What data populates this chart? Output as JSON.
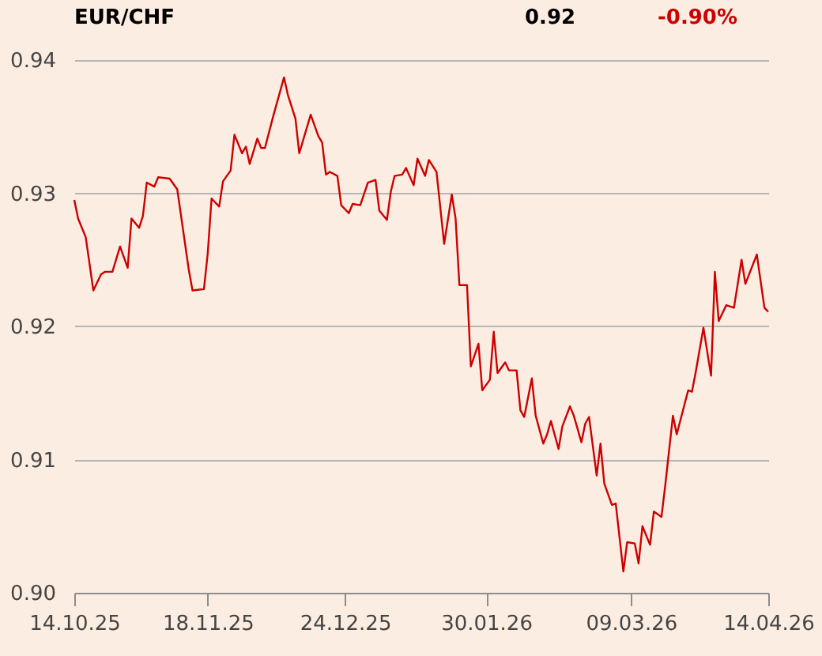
{
  "chart_data": {
    "type": "line",
    "title": "EUR/CHF",
    "annotations": [
      "0.92",
      "-0.90%"
    ],
    "x": [
      "2025-10-14",
      "2025-10-15",
      "2025-10-17",
      "2025-10-19",
      "2025-10-21",
      "2025-10-22",
      "2025-10-24",
      "2025-10-26",
      "2025-10-28",
      "2025-10-29",
      "2025-10-31",
      "2025-11-01",
      "2025-11-02",
      "2025-11-04",
      "2025-11-05",
      "2025-11-08",
      "2025-11-10",
      "2025-11-13",
      "2025-11-14",
      "2025-11-17",
      "2025-11-18",
      "2025-11-19",
      "2025-11-21",
      "2025-11-22",
      "2025-11-24",
      "2025-11-25",
      "2025-11-27",
      "2025-11-28",
      "2025-11-29",
      "2025-12-01",
      "2025-12-02",
      "2025-12-03",
      "2025-12-05",
      "2025-12-08",
      "2025-12-09",
      "2025-12-11",
      "2025-12-12",
      "2025-12-15",
      "2025-12-17",
      "2025-12-18",
      "2025-12-19",
      "2025-12-20",
      "2025-12-22",
      "2025-12-23",
      "2025-12-25",
      "2025-12-26",
      "2025-12-28",
      "2025-12-30",
      "2026-01-01",
      "2026-01-02",
      "2026-01-04",
      "2026-01-05",
      "2026-01-06",
      "2026-01-08",
      "2026-01-09",
      "2026-01-11",
      "2026-01-12",
      "2026-01-14",
      "2026-01-15",
      "2026-01-17",
      "2026-01-19",
      "2026-01-21",
      "2026-01-22",
      "2026-01-23",
      "2026-01-25",
      "2026-01-26",
      "2026-01-28",
      "2026-01-29",
      "2026-01-31",
      "2026-02-01",
      "2026-02-02",
      "2026-02-04",
      "2026-02-05",
      "2026-02-07",
      "2026-02-08",
      "2026-02-09",
      "2026-02-11",
      "2026-02-12",
      "2026-02-14",
      "2026-02-15",
      "2026-02-16",
      "2026-02-18",
      "2026-02-19",
      "2026-02-21",
      "2026-02-22",
      "2026-02-24",
      "2026-02-25",
      "2026-02-26",
      "2026-02-28",
      "2026-03-01",
      "2026-03-02",
      "2026-03-04",
      "2026-03-05",
      "2026-03-07",
      "2026-03-08",
      "2026-03-10",
      "2026-03-11",
      "2026-03-12",
      "2026-03-14",
      "2026-03-15",
      "2026-03-17",
      "2026-03-18",
      "2026-03-20",
      "2026-03-21",
      "2026-03-24",
      "2026-03-25",
      "2026-03-26",
      "2026-03-28",
      "2026-03-30",
      "2026-03-31",
      "2026-04-01",
      "2026-04-03",
      "2026-04-05",
      "2026-04-07",
      "2026-04-08",
      "2026-04-11",
      "2026-04-13",
      "2026-04-14"
    ],
    "series": [
      {
        "color": "#cc0000",
        "values": [
          0.9295,
          0.9281,
          0.9267,
          0.9227,
          0.9239,
          0.9241,
          0.9241,
          0.926,
          0.9244,
          0.9281,
          0.9274,
          0.9283,
          0.9308,
          0.9305,
          0.9312,
          0.9311,
          0.9303,
          0.9243,
          0.9227,
          0.9228,
          0.9255,
          0.9296,
          0.929,
          0.9309,
          0.9317,
          0.9344,
          0.933,
          0.9335,
          0.9322,
          0.9341,
          0.9334,
          0.9334,
          0.9356,
          0.9387,
          0.9374,
          0.9356,
          0.933,
          0.9359,
          0.9343,
          0.9338,
          0.9314,
          0.9316,
          0.9313,
          0.9291,
          0.9285,
          0.9292,
          0.9291,
          0.9308,
          0.931,
          0.9287,
          0.928,
          0.9301,
          0.9313,
          0.9314,
          0.9319,
          0.9306,
          0.9326,
          0.9313,
          0.9325,
          0.9316,
          0.9262,
          0.9299,
          0.9281,
          0.9231,
          0.9231,
          0.917,
          0.9187,
          0.9152,
          0.916,
          0.9196,
          0.9165,
          0.9173,
          0.9167,
          0.9167,
          0.9137,
          0.9132,
          0.9161,
          0.9133,
          0.9112,
          0.9119,
          0.9129,
          0.9108,
          0.9125,
          0.914,
          0.9133,
          0.9113,
          0.9127,
          0.9132,
          0.9088,
          0.9112,
          0.9082,
          0.9066,
          0.9067,
          0.9016,
          0.9038,
          0.9037,
          0.9022,
          0.905,
          0.9036,
          0.9061,
          0.9057,
          0.9081,
          0.9133,
          0.9119,
          0.9152,
          0.9151,
          0.9166,
          0.9199,
          0.9163,
          0.9241,
          0.9204,
          0.9216,
          0.9214,
          0.925,
          0.9232,
          0.9254,
          0.9214,
          0.9211
        ]
      }
    ],
    "xlim": [
      "2025-10-14",
      "2026-04-14"
    ],
    "xticks": [
      {
        "value": "2025-10-14",
        "label": "14.10.25"
      },
      {
        "value": "2025-11-18",
        "label": "18.11.25"
      },
      {
        "value": "2025-12-24",
        "label": "24.12.25"
      },
      {
        "value": "2026-01-30",
        "label": "30.01.26"
      },
      {
        "value": "2026-03-09",
        "label": "09.03.26"
      },
      {
        "value": "2026-04-14",
        "label": "14.04.26"
      }
    ],
    "ylim": [
      0.9,
      0.94
    ],
    "yticks": [
      {
        "value": 0.9,
        "label": "0.90"
      },
      0.91,
      0.92,
      0.93,
      0.94
    ],
    "grid": "y",
    "line_style": "solid"
  }
}
